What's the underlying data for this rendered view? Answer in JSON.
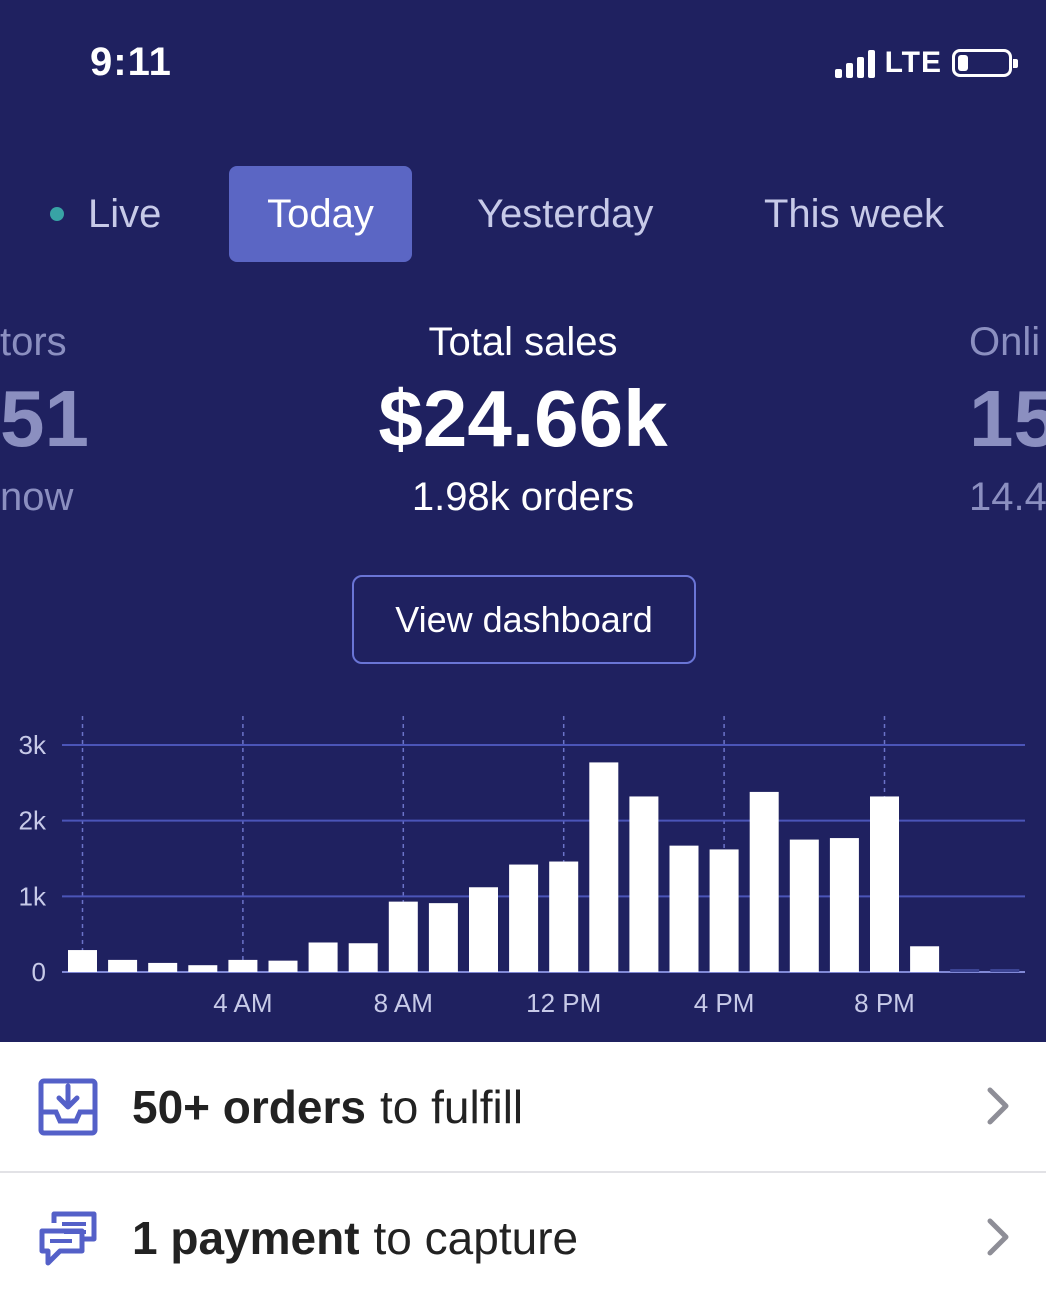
{
  "status_bar": {
    "time": "9:11",
    "network": "LTE"
  },
  "tabs": [
    {
      "label": "Live"
    },
    {
      "label": "Today"
    },
    {
      "label": "Yesterday"
    },
    {
      "label": "This week"
    }
  ],
  "metrics": {
    "left": {
      "label": "tors",
      "value": "51",
      "sub": "now"
    },
    "center": {
      "label": "Total sales",
      "value": "$24.66k",
      "sub": "1.98k orders"
    },
    "right": {
      "label": "Onli",
      "value": "15",
      "sub": "14.4"
    }
  },
  "view_dashboard_label": "View dashboard",
  "chart_data": {
    "type": "bar",
    "ylim": [
      0,
      3000
    ],
    "yticks": [
      "0",
      "1k",
      "2k",
      "3k"
    ],
    "xticks": [
      "4 AM",
      "8 AM",
      "12 PM",
      "4 PM",
      "8 PM"
    ],
    "hours": [
      0,
      1,
      2,
      3,
      4,
      5,
      6,
      7,
      8,
      9,
      10,
      11,
      12,
      13,
      14,
      15,
      16,
      17,
      18,
      19,
      20,
      21,
      22,
      23
    ],
    "values": [
      290,
      160,
      120,
      90,
      160,
      150,
      390,
      380,
      930,
      910,
      1120,
      1420,
      1460,
      2770,
      2320,
      1670,
      1620,
      2380,
      1750,
      1770,
      2320,
      340,
      0,
      0
    ]
  },
  "action_rows": [
    {
      "bold": "50+ orders",
      "rest": "to fulfill",
      "icon": "inbox-download-icon"
    },
    {
      "bold": "1 payment",
      "rest": "to capture",
      "icon": "payment-cards-icon"
    }
  ],
  "colors": {
    "hero_bg": "#1f2160",
    "active_tab": "#5b66c4",
    "live_dot": "#38a3a5",
    "icon_accent": "#5460c8"
  }
}
